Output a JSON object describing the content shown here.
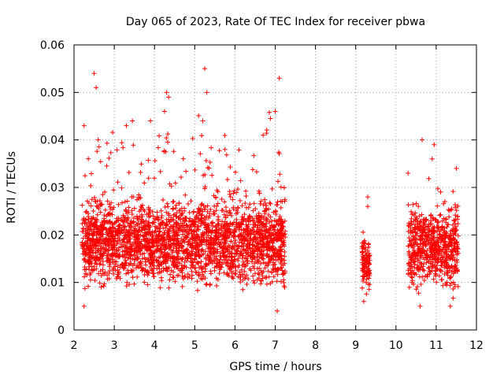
{
  "chart_data": {
    "type": "scatter",
    "title": "Day 065 of 2023, Rate Of TEC Index for receiver pbwa",
    "xlabel": "GPS time / hours",
    "ylabel": "ROTI / TECUs",
    "xlim": [
      2,
      12
    ],
    "ylim": [
      0,
      0.06
    ],
    "xticks": [
      "2",
      "3",
      "4",
      "5",
      "6",
      "7",
      "8",
      "9",
      "10",
      "11",
      "12"
    ],
    "yticks": [
      "0",
      "0.01",
      "0.02",
      "0.03",
      "0.04",
      "0.05",
      "0.06"
    ],
    "grid": true,
    "marker": "+",
    "color": "#ff0000",
    "series": [
      {
        "name": "ROTI",
        "segments": [
          {
            "x_start": 2.2,
            "x_end": 7.25,
            "typical_min": 0.007,
            "typical_max": 0.03,
            "max": 0.055
          },
          {
            "x_start": 9.15,
            "x_end": 9.35,
            "typical_min": 0.006,
            "typical_max": 0.022,
            "max": 0.028
          },
          {
            "x_start": 10.3,
            "x_end": 11.55,
            "typical_min": 0.006,
            "typical_max": 0.028,
            "max": 0.04
          }
        ],
        "notable_points": [
          {
            "x": 2.25,
            "y": 0.043
          },
          {
            "x": 2.5,
            "y": 0.054
          },
          {
            "x": 2.55,
            "y": 0.051
          },
          {
            "x": 2.6,
            "y": 0.04
          },
          {
            "x": 3.3,
            "y": 0.043
          },
          {
            "x": 3.45,
            "y": 0.044
          },
          {
            "x": 3.9,
            "y": 0.044
          },
          {
            "x": 4.3,
            "y": 0.05
          },
          {
            "x": 4.35,
            "y": 0.049
          },
          {
            "x": 4.25,
            "y": 0.046
          },
          {
            "x": 5.25,
            "y": 0.055
          },
          {
            "x": 5.3,
            "y": 0.05
          },
          {
            "x": 5.2,
            "y": 0.044
          },
          {
            "x": 5.75,
            "y": 0.038
          },
          {
            "x": 6.7,
            "y": 0.041
          },
          {
            "x": 7.0,
            "y": 0.046
          },
          {
            "x": 7.1,
            "y": 0.053
          },
          {
            "x": 7.05,
            "y": 0.004
          },
          {
            "x": 2.25,
            "y": 0.005
          },
          {
            "x": 9.3,
            "y": 0.028
          },
          {
            "x": 9.3,
            "y": 0.026
          },
          {
            "x": 9.2,
            "y": 0.006
          },
          {
            "x": 10.3,
            "y": 0.033
          },
          {
            "x": 10.65,
            "y": 0.04
          },
          {
            "x": 10.95,
            "y": 0.039
          },
          {
            "x": 10.9,
            "y": 0.036
          },
          {
            "x": 11.5,
            "y": 0.034
          },
          {
            "x": 11.35,
            "y": 0.005
          },
          {
            "x": 10.6,
            "y": 0.005
          }
        ]
      }
    ]
  }
}
